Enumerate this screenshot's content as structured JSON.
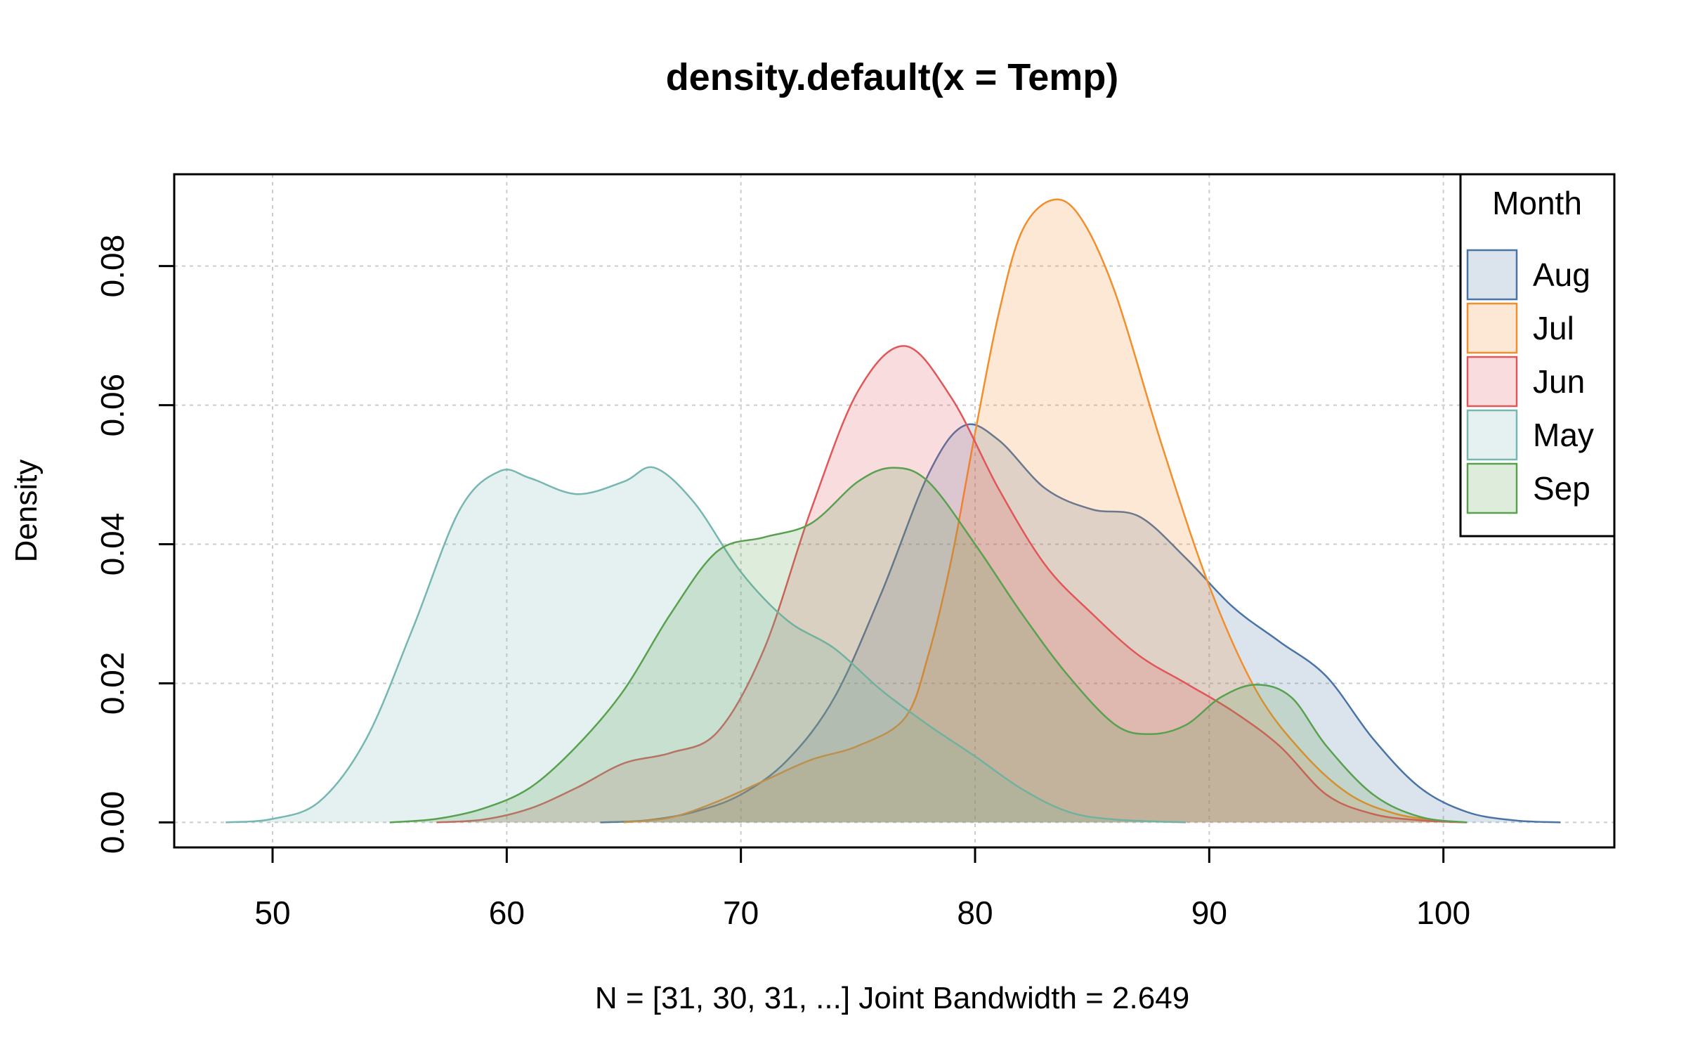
{
  "chart_data": {
    "type": "area",
    "title": "density.default(x = Temp)",
    "xlabel": "N = [31, 30, 31, ...]   Joint Bandwidth = 2.649",
    "ylabel": "Density",
    "xlim": [
      45.8,
      107.3
    ],
    "ylim": [
      -0.0036,
      0.0932
    ],
    "x_ticks": [
      50,
      60,
      70,
      80,
      90,
      100
    ],
    "x_tick_labels": [
      "50",
      "60",
      "70",
      "80",
      "90",
      "100"
    ],
    "y_ticks": [
      0,
      0.02,
      0.04,
      0.06,
      0.08
    ],
    "y_tick_labels": [
      "0.00",
      "0.02",
      "0.04",
      "0.06",
      "0.08"
    ],
    "grid": true,
    "legend": {
      "title": "Month",
      "position": "top-right"
    },
    "series": [
      {
        "name": "Aug",
        "color": "#4a74a6",
        "fill": "rgba(74,116,166,0.20)",
        "points": [
          [
            64,
            0
          ],
          [
            66,
            0.0003
          ],
          [
            68,
            0.0015
          ],
          [
            70,
            0.004
          ],
          [
            72,
            0.009
          ],
          [
            74,
            0.018
          ],
          [
            76,
            0.033
          ],
          [
            78,
            0.05
          ],
          [
            79.5,
            0.057
          ],
          [
            81,
            0.055
          ],
          [
            83,
            0.048
          ],
          [
            85,
            0.045
          ],
          [
            87,
            0.044
          ],
          [
            89,
            0.038
          ],
          [
            91,
            0.031
          ],
          [
            93,
            0.026
          ],
          [
            95,
            0.021
          ],
          [
            97,
            0.012
          ],
          [
            99,
            0.005
          ],
          [
            101,
            0.0015
          ],
          [
            103,
            0.0003
          ],
          [
            105,
            0
          ]
        ]
      },
      {
        "name": "Jul",
        "color": "#f28e2b",
        "fill": "rgba(242,142,43,0.20)",
        "points": [
          [
            65,
            0
          ],
          [
            67,
            0.0007
          ],
          [
            69,
            0.003
          ],
          [
            71,
            0.006
          ],
          [
            73,
            0.009
          ],
          [
            75,
            0.011
          ],
          [
            77,
            0.015
          ],
          [
            78,
            0.024
          ],
          [
            79,
            0.038
          ],
          [
            80,
            0.056
          ],
          [
            81,
            0.073
          ],
          [
            82,
            0.085
          ],
          [
            83.3,
            0.0895
          ],
          [
            84.5,
            0.087
          ],
          [
            86,
            0.076
          ],
          [
            88,
            0.054
          ],
          [
            90,
            0.034
          ],
          [
            92,
            0.019
          ],
          [
            94,
            0.01
          ],
          [
            96,
            0.004
          ],
          [
            98,
            0.0012
          ],
          [
            100,
            0.0002
          ],
          [
            101,
            0
          ]
        ]
      },
      {
        "name": "Jun",
        "color": "#e15759",
        "fill": "rgba(225,87,89,0.20)",
        "points": [
          [
            57,
            0
          ],
          [
            59,
            0.0004
          ],
          [
            61,
            0.002
          ],
          [
            63,
            0.005
          ],
          [
            65,
            0.0085
          ],
          [
            67,
            0.01
          ],
          [
            69,
            0.013
          ],
          [
            71,
            0.025
          ],
          [
            73,
            0.045
          ],
          [
            75,
            0.062
          ],
          [
            77,
            0.0685
          ],
          [
            79,
            0.061
          ],
          [
            81,
            0.048
          ],
          [
            83,
            0.037
          ],
          [
            85,
            0.03
          ],
          [
            87,
            0.024
          ],
          [
            89,
            0.02
          ],
          [
            91,
            0.016
          ],
          [
            93,
            0.011
          ],
          [
            95,
            0.004
          ],
          [
            97,
            0.0012
          ],
          [
            99,
            0.0003
          ],
          [
            101,
            0
          ]
        ]
      },
      {
        "name": "May",
        "color": "#76b7b2",
        "fill": "rgba(118,183,178,0.20)",
        "points": [
          [
            48,
            0
          ],
          [
            50,
            0.0005
          ],
          [
            52,
            0.003
          ],
          [
            54,
            0.012
          ],
          [
            56,
            0.028
          ],
          [
            58,
            0.045
          ],
          [
            59.7,
            0.0505
          ],
          [
            61,
            0.0495
          ],
          [
            63,
            0.0472
          ],
          [
            65,
            0.049
          ],
          [
            66.3,
            0.051
          ],
          [
            68,
            0.046
          ],
          [
            70,
            0.036
          ],
          [
            72,
            0.029
          ],
          [
            74,
            0.025
          ],
          [
            76,
            0.019
          ],
          [
            78,
            0.014
          ],
          [
            80,
            0.0095
          ],
          [
            82,
            0.0048
          ],
          [
            84,
            0.0015
          ],
          [
            86,
            0.0004
          ],
          [
            89,
            0
          ]
        ]
      },
      {
        "name": "Sep",
        "color": "#59a14f",
        "fill": "rgba(89,161,79,0.20)",
        "points": [
          [
            55,
            0
          ],
          [
            57,
            0.0005
          ],
          [
            59,
            0.002
          ],
          [
            61,
            0.005
          ],
          [
            63,
            0.011
          ],
          [
            65,
            0.019
          ],
          [
            67,
            0.03
          ],
          [
            69,
            0.039
          ],
          [
            71,
            0.041
          ],
          [
            73,
            0.043
          ],
          [
            75,
            0.049
          ],
          [
            76.5,
            0.051
          ],
          [
            78,
            0.049
          ],
          [
            80,
            0.04
          ],
          [
            82,
            0.03
          ],
          [
            84,
            0.021
          ],
          [
            86,
            0.014
          ],
          [
            87.5,
            0.0127
          ],
          [
            89,
            0.014
          ],
          [
            90.5,
            0.018
          ],
          [
            92,
            0.0198
          ],
          [
            93.5,
            0.018
          ],
          [
            95,
            0.011
          ],
          [
            97,
            0.004
          ],
          [
            99,
            0.0008
          ],
          [
            101,
            0
          ]
        ]
      }
    ]
  }
}
